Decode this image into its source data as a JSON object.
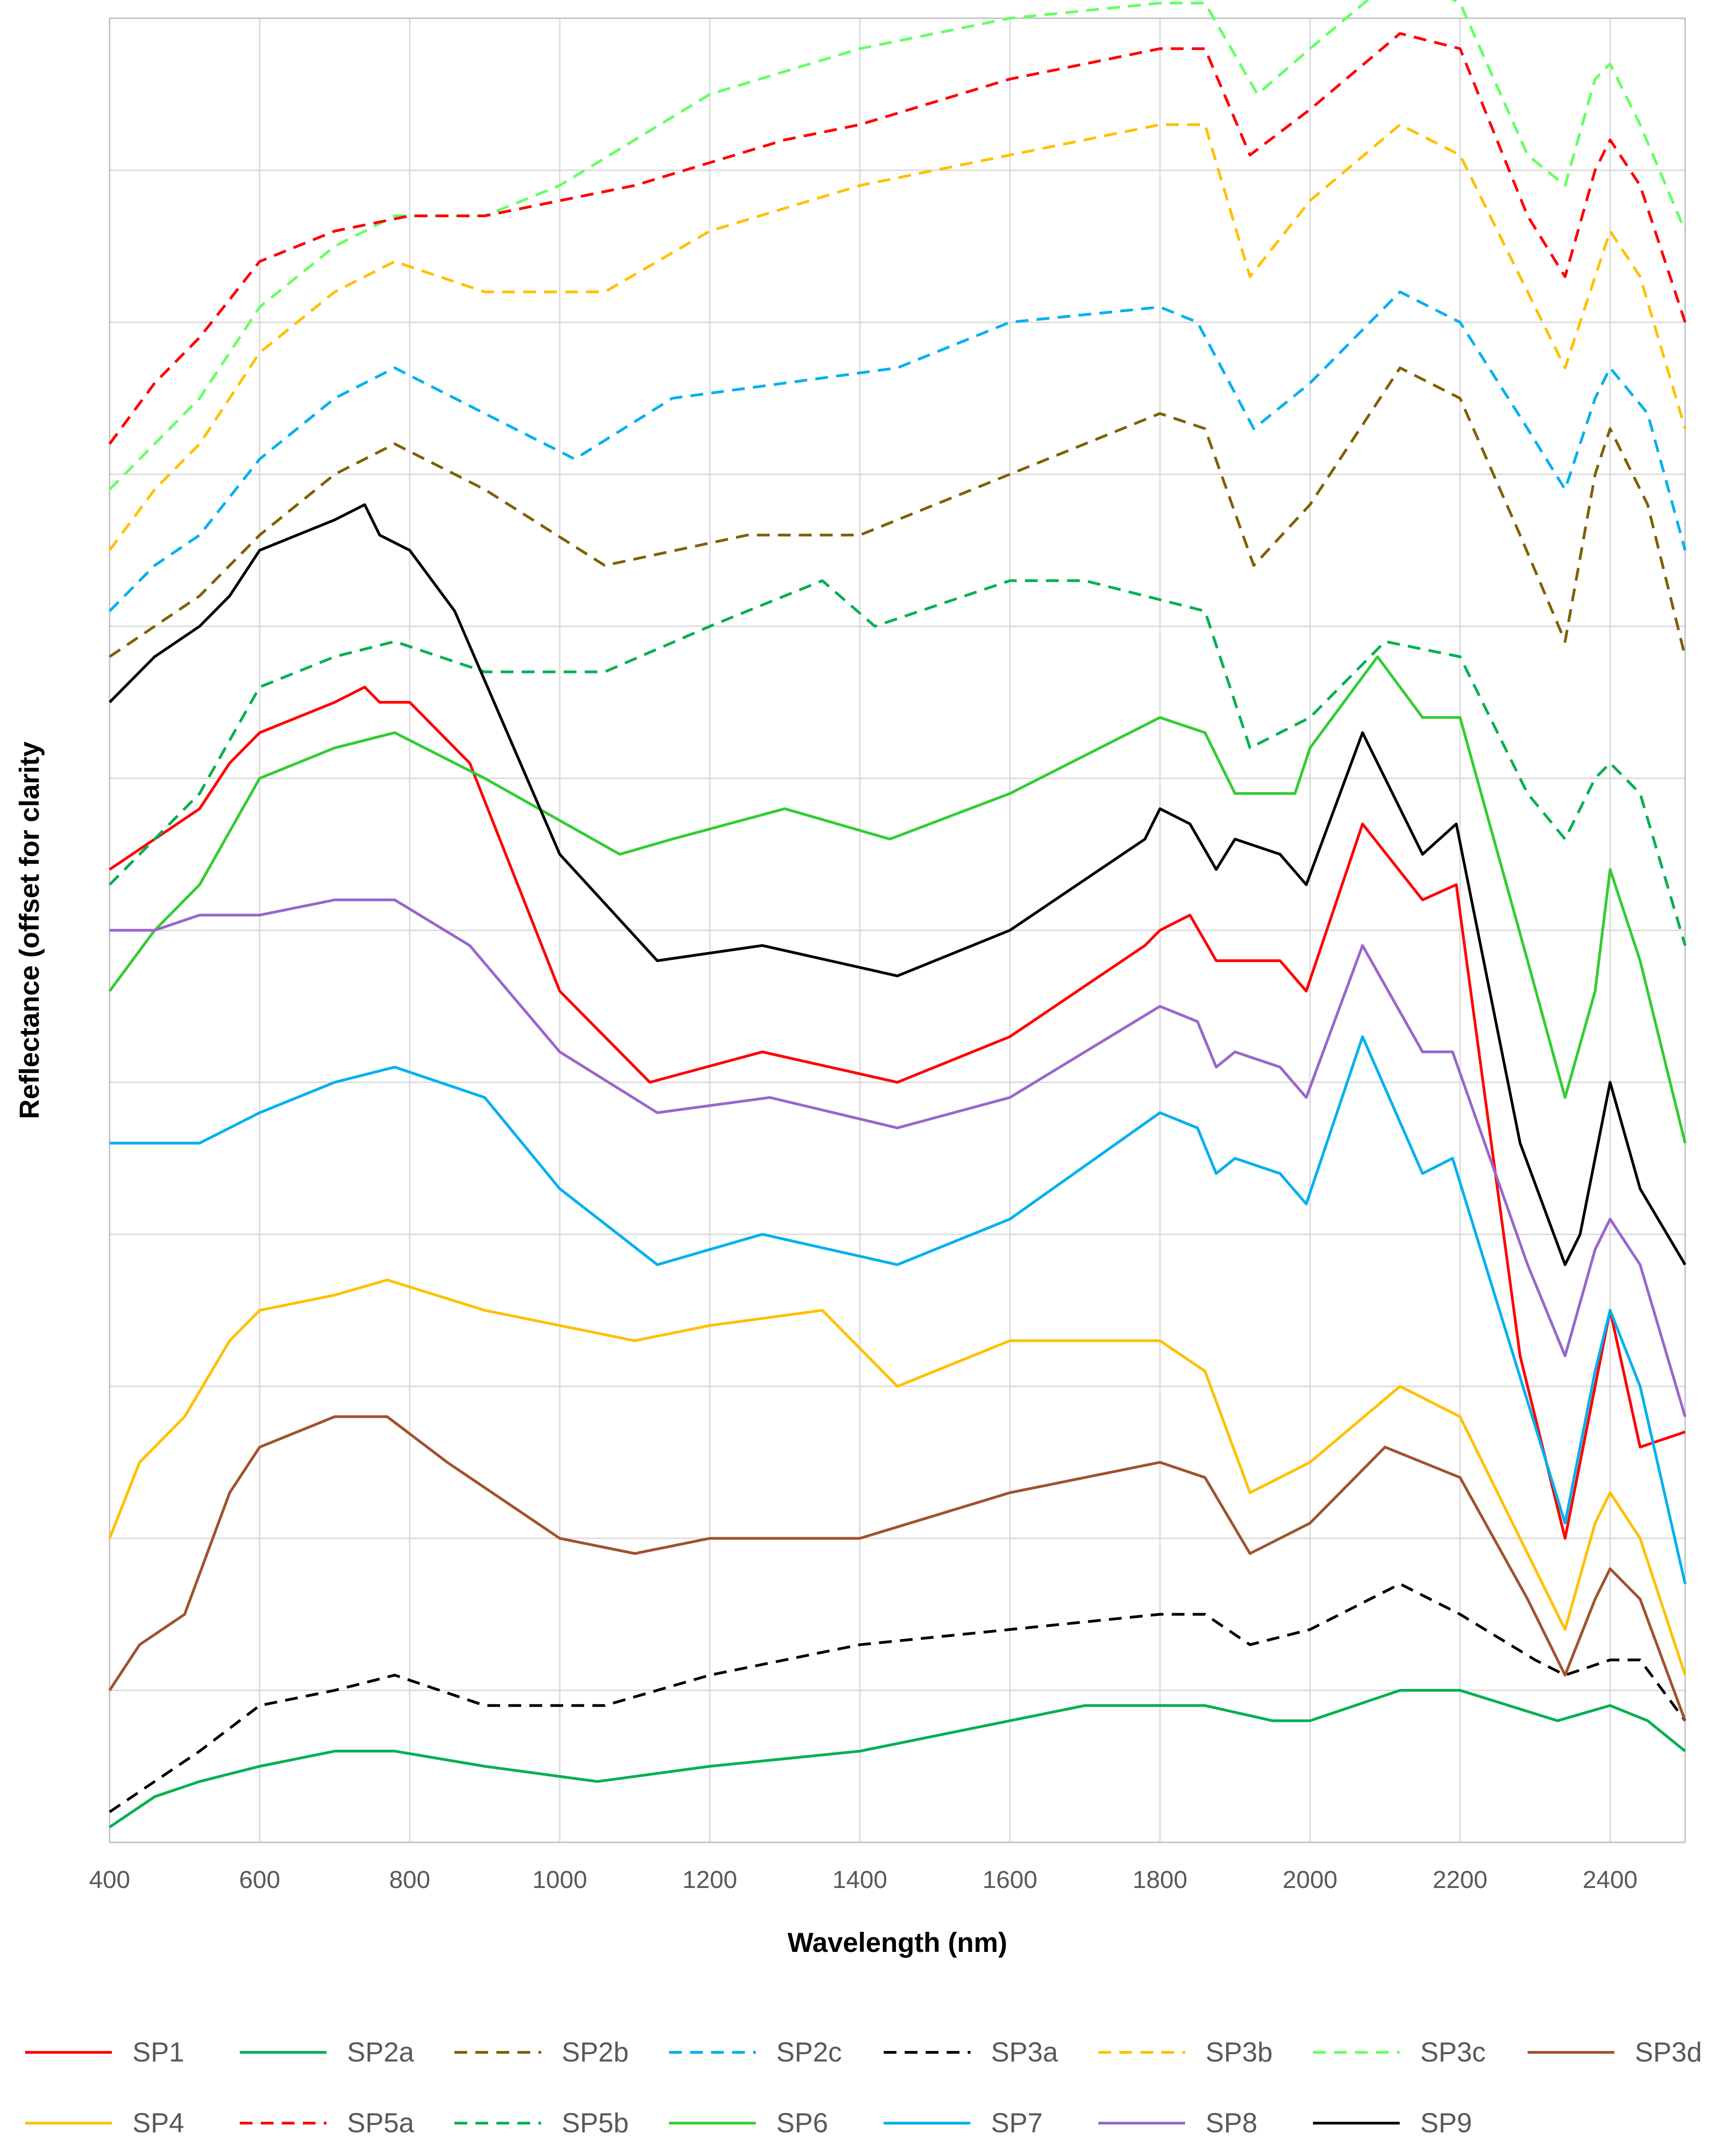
{
  "chart_data": {
    "type": "line",
    "title": "",
    "xlabel": "Wavelength (nm)",
    "ylabel": "Reflectance (offset for clarity",
    "xlim": [
      400,
      2500
    ],
    "ylim": [
      0,
      12
    ],
    "x_ticks": [
      "400",
      "600",
      "800",
      "1000",
      "1200",
      "1400",
      "1600",
      "1800",
      "2000",
      "2200",
      "2400"
    ],
    "y_tick_labels": "none",
    "grid": "both",
    "legend_position": "bottom",
    "series": [
      {
        "name": "SP1",
        "color": "#ff0000",
        "dash": "solid",
        "x": [
          400,
          460,
          520,
          560,
          600,
          700,
          740,
          760,
          800,
          880,
          1000,
          1120,
          1270,
          1450,
          1600,
          1780,
          1800,
          1840,
          1875,
          1900,
          1960,
          1995,
          2070,
          2150,
          2195,
          2280,
          2340,
          2360,
          2400,
          2440,
          2500
        ],
        "y": [
          6.4,
          6.6,
          6.8,
          7.1,
          7.3,
          7.5,
          7.6,
          7.5,
          7.5,
          7.1,
          5.6,
          5.0,
          5.2,
          5.0,
          5.3,
          5.9,
          6.0,
          6.1,
          5.8,
          5.8,
          5.8,
          5.6,
          6.7,
          6.2,
          6.3,
          3.2,
          2.0,
          2.5,
          3.5,
          2.6,
          2.7
        ]
      },
      {
        "name": "SP2a",
        "color": "#00b050",
        "dash": "solid",
        "x": [
          400,
          460,
          520,
          600,
          700,
          780,
          900,
          1050,
          1200,
          1400,
          1600,
          1700,
          1800,
          1860,
          1950,
          2000,
          2120,
          2200,
          2330,
          2400,
          2450,
          2500
        ],
        "y": [
          0.1,
          0.3,
          0.4,
          0.5,
          0.6,
          0.6,
          0.5,
          0.4,
          0.5,
          0.6,
          0.8,
          0.9,
          0.9,
          0.9,
          0.8,
          0.8,
          1.0,
          1.0,
          0.8,
          0.9,
          0.8,
          0.6
        ]
      },
      {
        "name": "SP2b",
        "color": "#7f6000",
        "dash": "dashed",
        "x": [
          400,
          460,
          520,
          600,
          700,
          780,
          900,
          1060,
          1250,
          1400,
          1500,
          1700,
          1800,
          1860,
          1925,
          2000,
          2120,
          2200,
          2280,
          2340,
          2380,
          2400,
          2450,
          2500
        ],
        "y": [
          7.8,
          8.0,
          8.2,
          8.6,
          9.0,
          9.2,
          8.9,
          8.4,
          8.6,
          8.6,
          8.8,
          9.2,
          9.4,
          9.3,
          8.4,
          8.8,
          9.7,
          9.5,
          8.6,
          7.9,
          9.0,
          9.3,
          8.8,
          7.8
        ]
      },
      {
        "name": "SP2c",
        "color": "#00b0f0",
        "dash": "dashed",
        "x": [
          400,
          460,
          520,
          600,
          700,
          780,
          900,
          1020,
          1150,
          1300,
          1450,
          1600,
          1800,
          1850,
          1925,
          2000,
          2120,
          2200,
          2290,
          2340,
          2380,
          2400,
          2450,
          2500
        ],
        "y": [
          8.1,
          8.4,
          8.6,
          9.1,
          9.5,
          9.7,
          9.4,
          9.1,
          9.5,
          9.6,
          9.7,
          10.0,
          10.1,
          10.0,
          9.3,
          9.6,
          10.2,
          10.0,
          9.3,
          8.9,
          9.5,
          9.7,
          9.4,
          8.5
        ]
      },
      {
        "name": "SP3a",
        "color": "#000000",
        "dash": "dashed",
        "x": [
          400,
          460,
          520,
          600,
          700,
          780,
          900,
          1060,
          1200,
          1400,
          1600,
          1800,
          1860,
          1920,
          2000,
          2120,
          2200,
          2300,
          2340,
          2400,
          2440,
          2500
        ],
        "y": [
          0.2,
          0.4,
          0.6,
          0.9,
          1.0,
          1.1,
          0.9,
          0.9,
          1.1,
          1.3,
          1.4,
          1.5,
          1.5,
          1.3,
          1.4,
          1.7,
          1.5,
          1.2,
          1.1,
          1.2,
          1.2,
          0.8
        ]
      },
      {
        "name": "SP3b",
        "color": "#ffc000",
        "dash": "dashed",
        "x": [
          400,
          460,
          520,
          600,
          700,
          780,
          900,
          1060,
          1200,
          1400,
          1600,
          1800,
          1860,
          1920,
          2000,
          2120,
          2200,
          2290,
          2340,
          2380,
          2400,
          2440,
          2500
        ],
        "y": [
          8.5,
          8.9,
          9.2,
          9.8,
          10.2,
          10.4,
          10.2,
          10.2,
          10.6,
          10.9,
          11.1,
          11.3,
          11.3,
          10.3,
          10.8,
          11.3,
          11.1,
          10.2,
          9.7,
          10.3,
          10.6,
          10.3,
          9.3
        ]
      },
      {
        "name": "SP3c",
        "color": "#66ff66",
        "dash": "dashed",
        "x": [
          400,
          460,
          520,
          600,
          700,
          780,
          900,
          1000,
          1100,
          1200,
          1400,
          1600,
          1800,
          1860,
          1930,
          2000,
          2120,
          2200,
          2290,
          2340,
          2380,
          2400,
          2440,
          2500
        ],
        "y": [
          8.9,
          9.2,
          9.5,
          10.1,
          10.5,
          10.7,
          10.7,
          10.9,
          11.2,
          11.5,
          11.8,
          12.0,
          12.1,
          12.1,
          11.5,
          11.8,
          12.3,
          12.1,
          11.1,
          10.9,
          11.6,
          11.7,
          11.3,
          10.6
        ]
      },
      {
        "name": "SP3d",
        "color": "#a0522d",
        "dash": "solid",
        "x": [
          400,
          440,
          500,
          560,
          600,
          700,
          770,
          850,
          1000,
          1100,
          1200,
          1400,
          1600,
          1800,
          1860,
          1920,
          2000,
          2100,
          2200,
          2290,
          2340,
          2380,
          2400,
          2440,
          2500
        ],
        "y": [
          1.0,
          1.3,
          1.5,
          2.3,
          2.6,
          2.8,
          2.8,
          2.5,
          2.0,
          1.9,
          2.0,
          2.0,
          2.3,
          2.5,
          2.4,
          1.9,
          2.1,
          2.6,
          2.4,
          1.6,
          1.1,
          1.6,
          1.8,
          1.6,
          0.8
        ]
      },
      {
        "name": "SP4",
        "color": "#ffc000",
        "dash": "solid",
        "x": [
          400,
          440,
          500,
          560,
          600,
          700,
          770,
          900,
          1100,
          1200,
          1350,
          1450,
          1600,
          1800,
          1860,
          1920,
          2000,
          2120,
          2200,
          2290,
          2340,
          2380,
          2400,
          2440,
          2500
        ],
        "y": [
          2.0,
          2.5,
          2.8,
          3.3,
          3.5,
          3.6,
          3.7,
          3.5,
          3.3,
          3.4,
          3.5,
          3.0,
          3.3,
          3.3,
          3.1,
          2.3,
          2.5,
          3.0,
          2.8,
          1.9,
          1.4,
          2.1,
          2.3,
          2.0,
          1.1
        ]
      },
      {
        "name": "SP5a",
        "color": "#ff0000",
        "dash": "dashed",
        "x": [
          400,
          460,
          520,
          600,
          700,
          800,
          900,
          1100,
          1300,
          1400,
          1600,
          1800,
          1860,
          1920,
          2000,
          2120,
          2200,
          2290,
          2340,
          2380,
          2400,
          2440,
          2500
        ],
        "y": [
          9.2,
          9.6,
          9.9,
          10.4,
          10.6,
          10.7,
          10.7,
          10.9,
          11.2,
          11.3,
          11.6,
          11.8,
          11.8,
          11.1,
          11.4,
          11.9,
          11.8,
          10.7,
          10.3,
          11.0,
          11.2,
          10.9,
          10.0
        ]
      },
      {
        "name": "SP5b",
        "color": "#00b050",
        "dash": "dashed",
        "x": [
          400,
          460,
          520,
          600,
          700,
          780,
          900,
          1060,
          1200,
          1350,
          1420,
          1600,
          1700,
          1860,
          1920,
          2000,
          2100,
          2200,
          2290,
          2340,
          2380,
          2400,
          2440,
          2500
        ],
        "y": [
          6.3,
          6.6,
          6.9,
          7.6,
          7.8,
          7.9,
          7.7,
          7.7,
          8.0,
          8.3,
          8.0,
          8.3,
          8.3,
          8.1,
          7.2,
          7.4,
          7.9,
          7.8,
          6.9,
          6.6,
          7.0,
          7.1,
          6.9,
          5.9
        ]
      },
      {
        "name": "SP6",
        "color": "#33cc33",
        "dash": "solid",
        "x": [
          400,
          460,
          520,
          600,
          700,
          780,
          900,
          1080,
          1150,
          1300,
          1440,
          1600,
          1800,
          1860,
          1900,
          1980,
          2000,
          2090,
          2150,
          2200,
          2290,
          2340,
          2380,
          2400,
          2440,
          2500
        ],
        "y": [
          5.6,
          6.0,
          6.3,
          7.0,
          7.2,
          7.3,
          7.0,
          6.5,
          6.6,
          6.8,
          6.6,
          6.9,
          7.4,
          7.3,
          6.9,
          6.9,
          7.2,
          7.8,
          7.4,
          7.4,
          5.8,
          4.9,
          5.6,
          6.4,
          5.8,
          4.6
        ]
      },
      {
        "name": "SP7",
        "color": "#00b0f0",
        "dash": "solid",
        "x": [
          400,
          460,
          520,
          600,
          700,
          780,
          900,
          1000,
          1130,
          1270,
          1450,
          1600,
          1800,
          1850,
          1875,
          1900,
          1960,
          1995,
          2070,
          2150,
          2190,
          2290,
          2340,
          2380,
          2400,
          2440,
          2500
        ],
        "y": [
          4.6,
          4.6,
          4.6,
          4.8,
          5.0,
          5.1,
          4.9,
          4.3,
          3.8,
          4.0,
          3.8,
          4.1,
          4.8,
          4.7,
          4.4,
          4.5,
          4.4,
          4.2,
          5.3,
          4.4,
          4.5,
          2.9,
          2.1,
          3.1,
          3.5,
          3.0,
          1.7
        ]
      },
      {
        "name": "SP8",
        "color": "#9966cc",
        "dash": "solid",
        "x": [
          400,
          460,
          520,
          600,
          700,
          780,
          880,
          1000,
          1130,
          1280,
          1450,
          1600,
          1800,
          1850,
          1875,
          1900,
          1960,
          1995,
          2070,
          2150,
          2190,
          2290,
          2340,
          2380,
          2400,
          2440,
          2500
        ],
        "y": [
          6.0,
          6.0,
          6.1,
          6.1,
          6.2,
          6.2,
          5.9,
          5.2,
          4.8,
          4.9,
          4.7,
          4.9,
          5.5,
          5.4,
          5.1,
          5.2,
          5.1,
          4.9,
          5.9,
          5.2,
          5.2,
          3.8,
          3.2,
          3.9,
          4.1,
          3.8,
          2.8
        ]
      },
      {
        "name": "SP9",
        "color": "#000000",
        "dash": "solid",
        "x": [
          400,
          460,
          520,
          560,
          600,
          700,
          740,
          760,
          800,
          860,
          1000,
          1130,
          1270,
          1450,
          1600,
          1780,
          1800,
          1840,
          1875,
          1900,
          1960,
          1995,
          2070,
          2150,
          2195,
          2280,
          2340,
          2360,
          2400,
          2440,
          2500
        ],
        "y": [
          7.5,
          7.8,
          8.0,
          8.2,
          8.5,
          8.7,
          8.8,
          8.6,
          8.5,
          8.1,
          6.5,
          5.8,
          5.9,
          5.7,
          6.0,
          6.6,
          6.8,
          6.7,
          6.4,
          6.6,
          6.5,
          6.3,
          7.3,
          6.5,
          6.7,
          4.6,
          3.8,
          4.0,
          5.0,
          4.3,
          3.8
        ]
      }
    ]
  }
}
